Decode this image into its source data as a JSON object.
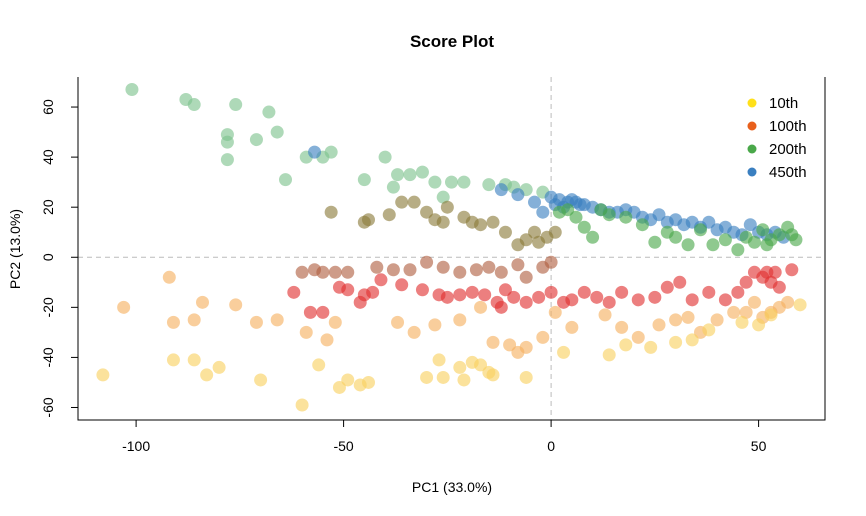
{
  "chart_data": {
    "type": "scatter",
    "title": "Score Plot",
    "xlabel": "PC1 (33.0%)",
    "ylabel": "PC2 (13.0%)",
    "xlim": [
      -114,
      66
    ],
    "ylim": [
      -65,
      72
    ],
    "x_ticks": [
      -100,
      -50,
      0,
      50
    ],
    "y_ticks": [
      -60,
      -40,
      -20,
      0,
      20,
      40,
      60
    ],
    "reference_lines": {
      "x": 0,
      "y": 0,
      "style": "dashed",
      "color": "#bbbbbb"
    },
    "legend_position": "top-right",
    "colors": {
      "10th": "#ffe01a",
      "100th": "#e8601c",
      "200th": "#4aa84a",
      "450th": "#3a7fc0",
      "early_green": "#7cc28c",
      "mid_olive": "#8a7a3a",
      "mid_brown": "#b06040",
      "mid_red": "#e03030",
      "light_orange": "#f5b060",
      "light_yellow": "#f8d060"
    },
    "legend": [
      {
        "label": "10th",
        "color": "#ffe01a"
      },
      {
        "label": "100th",
        "color": "#e8601c"
      },
      {
        "label": "200th",
        "color": "#4aa84a"
      },
      {
        "label": "450th",
        "color": "#3a7fc0"
      }
    ],
    "series": [
      {
        "color_key": "early_green",
        "points": [
          [
            -101,
            67
          ],
          [
            -88,
            63
          ],
          [
            -86,
            61
          ],
          [
            -76,
            61
          ],
          [
            -78,
            49
          ],
          [
            -78,
            46
          ],
          [
            -78,
            39
          ],
          [
            -71,
            47
          ],
          [
            -68,
            58
          ],
          [
            -66,
            50
          ],
          [
            -64,
            31
          ],
          [
            -59,
            40
          ],
          [
            -55,
            40
          ],
          [
            -53,
            42
          ],
          [
            -45,
            31
          ],
          [
            -40,
            40
          ],
          [
            -38,
            28
          ],
          [
            -37,
            33
          ],
          [
            -34,
            33
          ],
          [
            -31,
            34
          ],
          [
            -28,
            30
          ],
          [
            -26,
            24
          ],
          [
            -24,
            30
          ],
          [
            -21,
            30
          ],
          [
            -15,
            29
          ],
          [
            -11,
            29
          ],
          [
            -9,
            28
          ],
          [
            -6,
            27
          ],
          [
            -2,
            26
          ]
        ]
      },
      {
        "color_key": "mid_olive",
        "points": [
          [
            -53,
            18
          ],
          [
            -45,
            14
          ],
          [
            -44,
            15
          ],
          [
            -39,
            17
          ],
          [
            -36,
            22
          ],
          [
            -33,
            22
          ],
          [
            -30,
            18
          ],
          [
            -28,
            15
          ],
          [
            -26,
            14
          ],
          [
            -25,
            20
          ],
          [
            -21,
            16
          ],
          [
            -19,
            14
          ],
          [
            -17,
            13
          ],
          [
            -14,
            14
          ],
          [
            -11,
            10
          ],
          [
            -8,
            5
          ],
          [
            -6,
            7
          ],
          [
            -4,
            10
          ],
          [
            -3,
            6
          ],
          [
            -1,
            8
          ],
          [
            1,
            10
          ]
        ]
      },
      {
        "color_key": "450th",
        "points": [
          [
            -57,
            42
          ],
          [
            -12,
            27
          ],
          [
            -8,
            25
          ],
          [
            -4,
            22
          ],
          [
            -2,
            18
          ],
          [
            0,
            24
          ],
          [
            1,
            21
          ],
          [
            2,
            23
          ],
          [
            3,
            20
          ],
          [
            4,
            22
          ],
          [
            5,
            23
          ],
          [
            6,
            22
          ],
          [
            7,
            21
          ],
          [
            8,
            21
          ],
          [
            10,
            20
          ],
          [
            12,
            19
          ],
          [
            14,
            18
          ],
          [
            16,
            18
          ],
          [
            18,
            19
          ],
          [
            20,
            18
          ],
          [
            22,
            16
          ],
          [
            24,
            15
          ],
          [
            26,
            17
          ],
          [
            28,
            14
          ],
          [
            30,
            15
          ],
          [
            32,
            13
          ],
          [
            34,
            14
          ],
          [
            36,
            12
          ],
          [
            38,
            14
          ],
          [
            40,
            11
          ],
          [
            42,
            12
          ],
          [
            44,
            10
          ],
          [
            46,
            9
          ],
          [
            48,
            13
          ],
          [
            50,
            10
          ],
          [
            52,
            9
          ],
          [
            54,
            10
          ],
          [
            56,
            8
          ]
        ]
      },
      {
        "color_key": "200th",
        "points": [
          [
            2,
            18
          ],
          [
            4,
            19
          ],
          [
            6,
            16
          ],
          [
            8,
            12
          ],
          [
            10,
            8
          ],
          [
            12,
            19
          ],
          [
            14,
            17
          ],
          [
            18,
            16
          ],
          [
            22,
            13
          ],
          [
            25,
            6
          ],
          [
            28,
            10
          ],
          [
            30,
            8
          ],
          [
            33,
            5
          ],
          [
            36,
            11
          ],
          [
            39,
            5
          ],
          [
            42,
            7
          ],
          [
            45,
            3
          ],
          [
            47,
            8
          ],
          [
            49,
            6
          ],
          [
            51,
            11
          ],
          [
            52,
            5
          ],
          [
            53,
            7
          ],
          [
            55,
            9
          ],
          [
            57,
            12
          ],
          [
            58,
            9
          ],
          [
            59,
            7
          ]
        ]
      },
      {
        "color_key": "mid_brown",
        "points": [
          [
            -60,
            -6
          ],
          [
            -57,
            -5
          ],
          [
            -55,
            -6
          ],
          [
            -52,
            -6
          ],
          [
            -49,
            -6
          ],
          [
            -42,
            -4
          ],
          [
            -38,
            -5
          ],
          [
            -34,
            -5
          ],
          [
            -30,
            -2
          ],
          [
            -26,
            -4
          ],
          [
            -22,
            -6
          ],
          [
            -18,
            -5
          ],
          [
            -15,
            -4
          ],
          [
            -12,
            -6
          ],
          [
            -8,
            -3
          ],
          [
            -6,
            -8
          ],
          [
            -2,
            -4
          ],
          [
            0,
            -2
          ]
        ]
      },
      {
        "color_key": "mid_red",
        "points": [
          [
            -62,
            -14
          ],
          [
            -58,
            -22
          ],
          [
            -55,
            -22
          ],
          [
            -51,
            -12
          ],
          [
            -49,
            -13
          ],
          [
            -46,
            -18
          ],
          [
            -45,
            -15
          ],
          [
            -43,
            -14
          ],
          [
            -41,
            -9
          ],
          [
            -36,
            -11
          ],
          [
            -31,
            -13
          ],
          [
            -27,
            -15
          ],
          [
            -25,
            -16
          ],
          [
            -22,
            -15
          ],
          [
            -19,
            -14
          ],
          [
            -16,
            -15
          ],
          [
            -13,
            -18
          ],
          [
            -12,
            -20
          ],
          [
            -11,
            -13
          ],
          [
            -9,
            -16
          ],
          [
            -6,
            -18
          ],
          [
            -3,
            -16
          ],
          [
            0,
            -14
          ],
          [
            3,
            -18
          ],
          [
            5,
            -17
          ],
          [
            8,
            -14
          ],
          [
            11,
            -16
          ],
          [
            14,
            -18
          ],
          [
            17,
            -14
          ],
          [
            21,
            -17
          ],
          [
            25,
            -16
          ],
          [
            28,
            -12
          ],
          [
            31,
            -10
          ],
          [
            34,
            -17
          ],
          [
            38,
            -14
          ],
          [
            42,
            -17
          ],
          [
            45,
            -14
          ],
          [
            47,
            -10
          ],
          [
            49,
            -6
          ],
          [
            51,
            -8
          ],
          [
            52,
            -6
          ],
          [
            53,
            -10
          ],
          [
            54,
            -6
          ],
          [
            55,
            -12
          ],
          [
            58,
            -5
          ]
        ]
      },
      {
        "color_key": "light_orange",
        "points": [
          [
            -103,
            -20
          ],
          [
            -92,
            -8
          ],
          [
            -91,
            -26
          ],
          [
            -86,
            -25
          ],
          [
            -84,
            -18
          ],
          [
            -76,
            -19
          ],
          [
            -71,
            -26
          ],
          [
            -66,
            -25
          ],
          [
            -59,
            -30
          ],
          [
            -54,
            -33
          ],
          [
            -52,
            -26
          ],
          [
            -37,
            -26
          ],
          [
            -33,
            -30
          ],
          [
            -28,
            -27
          ],
          [
            -22,
            -25
          ],
          [
            -17,
            -20
          ],
          [
            -14,
            -34
          ],
          [
            -10,
            -35
          ],
          [
            -8,
            -38
          ],
          [
            -6,
            -36
          ],
          [
            -2,
            -32
          ],
          [
            1,
            -22
          ],
          [
            5,
            -28
          ],
          [
            13,
            -23
          ],
          [
            17,
            -28
          ],
          [
            21,
            -32
          ],
          [
            26,
            -27
          ],
          [
            30,
            -25
          ],
          [
            33,
            -24
          ],
          [
            36,
            -30
          ],
          [
            40,
            -25
          ],
          [
            44,
            -22
          ],
          [
            47,
            -22
          ],
          [
            49,
            -18
          ],
          [
            51,
            -24
          ],
          [
            53,
            -22
          ],
          [
            55,
            -20
          ],
          [
            57,
            -18
          ]
        ]
      },
      {
        "color_key": "light_yellow",
        "points": [
          [
            -108,
            -47
          ],
          [
            -91,
            -41
          ],
          [
            -86,
            -41
          ],
          [
            -83,
            -47
          ],
          [
            -80,
            -44
          ],
          [
            -70,
            -49
          ],
          [
            -60,
            -59
          ],
          [
            -56,
            -43
          ],
          [
            -51,
            -52
          ],
          [
            -49,
            -49
          ],
          [
            -46,
            -51
          ],
          [
            -44,
            -50
          ],
          [
            -30,
            -48
          ],
          [
            -27,
            -41
          ],
          [
            -26,
            -48
          ],
          [
            -22,
            -44
          ],
          [
            -21,
            -49
          ],
          [
            -19,
            -42
          ],
          [
            -17,
            -43
          ],
          [
            -15,
            -46
          ],
          [
            -14,
            -47
          ],
          [
            -6,
            -48
          ],
          [
            3,
            -38
          ],
          [
            14,
            -39
          ],
          [
            18,
            -35
          ],
          [
            24,
            -36
          ],
          [
            30,
            -34
          ],
          [
            34,
            -33
          ],
          [
            38,
            -29
          ],
          [
            46,
            -26
          ],
          [
            50,
            -27
          ],
          [
            53,
            -23
          ],
          [
            60,
            -19
          ]
        ]
      }
    ]
  }
}
